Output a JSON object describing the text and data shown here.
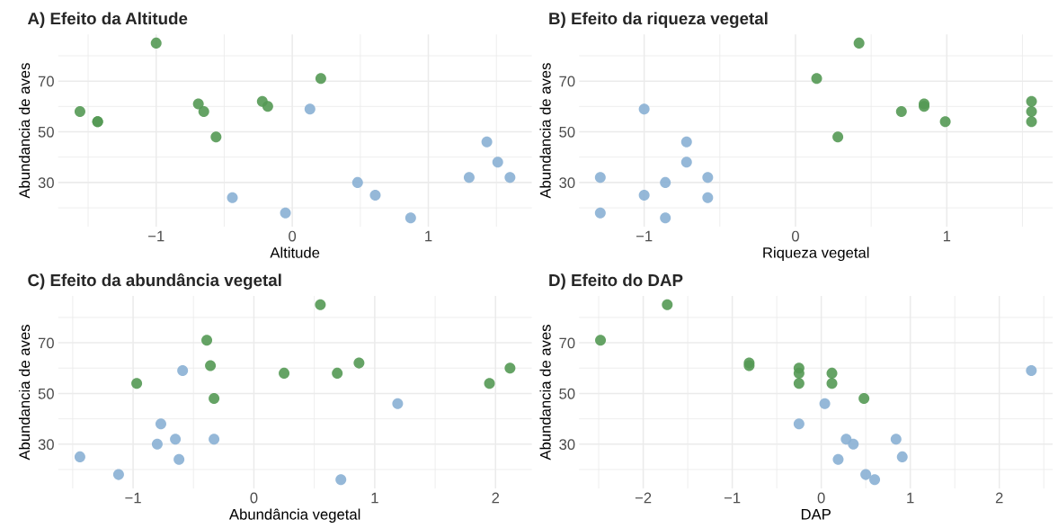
{
  "chart_data": [
    {
      "type": "scatter",
      "title": "A) Efeito da Altitude",
      "xlabel": "Altitude",
      "ylabel": "Abundancia de aves",
      "xlim": [
        -1.72,
        1.76
      ],
      "xticks": [
        -1,
        0,
        1
      ],
      "ylim": [
        12.55,
        88.45
      ],
      "yticks": [
        30,
        50,
        70
      ],
      "grid": true,
      "marker": "circle",
      "series": [
        {
          "color": "#549954",
          "x": [
            -1.56,
            -1.43,
            -1.43,
            -1.0,
            -0.69,
            -0.65,
            -0.56,
            -0.22,
            -0.18,
            0.21
          ],
          "values": [
            58,
            54,
            54,
            85,
            61,
            58,
            48,
            62,
            60,
            71
          ]
        },
        {
          "color": "#8ab0d4",
          "x": [
            0.13,
            -0.44,
            -0.05,
            0.48,
            0.61,
            0.87,
            1.3,
            1.43,
            1.51,
            1.6
          ],
          "values": [
            59,
            24,
            18,
            30,
            25,
            16,
            32,
            46,
            38,
            32
          ]
        }
      ]
    },
    {
      "type": "scatter",
      "title": "B) Efeito da riqueza vegetal",
      "xlabel": "Riqueza vegetal",
      "ylabel": "Abundancia de aves",
      "xlim": [
        -1.43,
        1.7
      ],
      "xticks": [
        -1,
        0,
        1
      ],
      "ylim": [
        12.55,
        88.45
      ],
      "yticks": [
        30,
        50,
        70
      ],
      "grid": true,
      "marker": "circle",
      "series": [
        {
          "color": "#549954",
          "x": [
            0.42,
            0.14,
            0.85,
            0.85,
            0.7,
            0.99,
            0.28,
            1.56,
            1.56,
            1.56
          ],
          "values": [
            85,
            71,
            61,
            60,
            58,
            54,
            48,
            62,
            58,
            54
          ]
        },
        {
          "color": "#8ab0d4",
          "x": [
            -1.0,
            -0.72,
            -0.72,
            -1.29,
            -0.86,
            -0.58,
            -1.0,
            -0.58,
            -1.29,
            -0.86
          ],
          "values": [
            59,
            46,
            38,
            32,
            30,
            32,
            25,
            24,
            18,
            16
          ]
        }
      ]
    },
    {
      "type": "scatter",
      "title": "C) Efeito da abundância vegetal",
      "xlabel": "Abundância vegetal",
      "ylabel": "Abundancia de aves",
      "xlim": [
        -1.62,
        2.3
      ],
      "xticks": [
        -1,
        0,
        1,
        2
      ],
      "ylim": [
        12.55,
        88.45
      ],
      "yticks": [
        30,
        50,
        70
      ],
      "grid": true,
      "marker": "circle",
      "series": [
        {
          "color": "#549954",
          "x": [
            0.55,
            -0.39,
            0.87,
            -0.36,
            2.12,
            0.25,
            0.69,
            -0.97,
            1.95,
            -0.33
          ],
          "values": [
            85,
            71,
            62,
            61,
            60,
            58,
            58,
            54,
            54,
            48
          ]
        },
        {
          "color": "#8ab0d4",
          "x": [
            -0.59,
            1.19,
            -0.77,
            -0.65,
            -0.33,
            -0.8,
            -1.44,
            -0.62,
            -1.12,
            0.72
          ],
          "values": [
            59,
            46,
            38,
            32,
            32,
            30,
            25,
            24,
            18,
            16
          ]
        }
      ]
    },
    {
      "type": "scatter",
      "title": "D) Efeito do DAP",
      "xlabel": "DAP",
      "ylabel": "Abundancia de aves",
      "xlim": [
        -2.72,
        2.6
      ],
      "xticks": [
        -2,
        -1,
        0,
        1,
        2
      ],
      "ylim": [
        12.55,
        88.45
      ],
      "yticks": [
        30,
        50,
        70
      ],
      "grid": true,
      "marker": "circle",
      "series": [
        {
          "color": "#549954",
          "x": [
            -2.48,
            -1.73,
            -0.81,
            -0.81,
            -0.25,
            -0.25,
            -0.25,
            0.12,
            0.12,
            0.48
          ],
          "values": [
            71,
            85,
            62,
            61,
            60,
            58,
            54,
            58,
            54,
            48
          ]
        },
        {
          "color": "#8ab0d4",
          "x": [
            2.36,
            0.04,
            -0.25,
            0.28,
            0.36,
            0.84,
            0.91,
            0.19,
            0.5,
            0.6
          ],
          "values": [
            59,
            46,
            38,
            32,
            30,
            32,
            25,
            24,
            18,
            16
          ]
        }
      ]
    }
  ]
}
